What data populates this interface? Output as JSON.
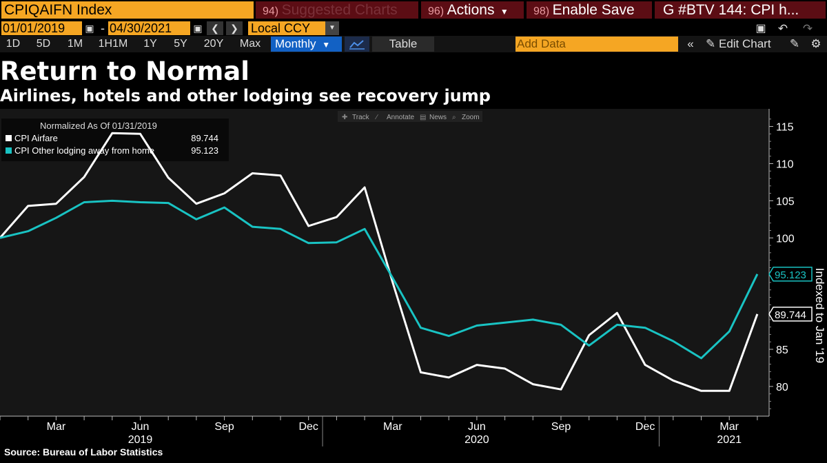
{
  "toolbar": {
    "ticker": "CPIQAIFN Index",
    "suggested": {
      "num": "94)",
      "label": "Suggested Charts"
    },
    "actions": {
      "num": "96)",
      "label": "Actions"
    },
    "enable_save": {
      "num": "98)",
      "label": "Enable Save"
    },
    "chart_name": "G #BTV 144: CPI h...",
    "start_date": "01/01/2019",
    "date_sep": "-",
    "end_date": "04/30/2021",
    "currency": "Local CCY",
    "timeframes": [
      "1D",
      "5D",
      "1M",
      "1H1M",
      "1Y",
      "5Y",
      "20Y",
      "Max"
    ],
    "period": "Monthly",
    "table_label": "Table",
    "add_data_placeholder": "Add Data",
    "edit_chart": "Edit Chart"
  },
  "headline": "Return to Normal",
  "subheadline": "Airlines, hotels and other lodging see recovery jump",
  "source": "Source: Bureau of Labor Statistics",
  "chart_tools": [
    "Track",
    "Annotate",
    "News",
    "Zoom"
  ],
  "legend": {
    "header": "Normalized As Of 01/31/2019",
    "items": [
      {
        "name": "CPI Airfare",
        "value": "89.744"
      },
      {
        "name": "CPI Other lodging away from home",
        "value": "95.123"
      }
    ]
  },
  "colors": {
    "airfare": "#ffffff",
    "lodging": "#19c3c3",
    "orange": "#f5a623",
    "highlight": "#1261c4"
  },
  "chart_data": {
    "type": "line",
    "x": [
      "2019-01",
      "2019-02",
      "2019-03",
      "2019-04",
      "2019-05",
      "2019-06",
      "2019-07",
      "2019-08",
      "2019-09",
      "2019-10",
      "2019-11",
      "2019-12",
      "2020-01",
      "2020-02",
      "2020-03",
      "2020-04",
      "2020-05",
      "2020-06",
      "2020-07",
      "2020-08",
      "2020-09",
      "2020-10",
      "2020-11",
      "2020-12",
      "2021-01",
      "2021-02",
      "2021-03",
      "2021-04"
    ],
    "series": [
      {
        "name": "CPI Airfare",
        "values": [
          100.0,
          104.3,
          104.6,
          108.2,
          114.1,
          114.0,
          108.1,
          104.6,
          106.0,
          108.7,
          108.4,
          101.6,
          102.8,
          106.8,
          94.0,
          81.9,
          81.2,
          82.9,
          82.4,
          80.3,
          79.6,
          86.9,
          89.9,
          82.9,
          80.8,
          79.4,
          79.4,
          89.744
        ]
      },
      {
        "name": "CPI Other lodging away from home",
        "values": [
          100.0,
          100.9,
          102.7,
          104.8,
          105.0,
          104.8,
          104.7,
          102.5,
          104.1,
          101.5,
          101.2,
          99.3,
          99.4,
          101.2,
          94.6,
          87.9,
          86.8,
          88.2,
          88.6,
          89.0,
          88.3,
          85.5,
          88.3,
          87.9,
          86.1,
          83.8,
          87.4,
          95.123
        ]
      }
    ],
    "y_ticks": [
      80,
      85,
      90,
      95,
      100,
      105,
      110,
      115
    ],
    "y_tick_labels": [
      "80",
      "85",
      "",
      "",
      "100",
      "105",
      "110",
      "115"
    ],
    "ylim": [
      76,
      117
    ],
    "ylabel": "Indexed to Jan '19",
    "x_month_labels": [
      {
        "x": "2019-03",
        "label": "Mar"
      },
      {
        "x": "2019-06",
        "label": "Jun"
      },
      {
        "x": "2019-09",
        "label": "Sep"
      },
      {
        "x": "2019-12",
        "label": "Dec"
      },
      {
        "x": "2020-03",
        "label": "Mar"
      },
      {
        "x": "2020-06",
        "label": "Jun"
      },
      {
        "x": "2020-09",
        "label": "Sep"
      },
      {
        "x": "2020-12",
        "label": "Dec"
      },
      {
        "x": "2021-03",
        "label": "Mar"
      }
    ],
    "x_year_labels": [
      {
        "x": "2019-06",
        "label": "2019"
      },
      {
        "x": "2020-06",
        "label": "2020"
      },
      {
        "x": "2021-03",
        "label": "2021"
      }
    ],
    "last_value_labels": [
      "89.744",
      "95.123"
    ],
    "grid": false,
    "legend_position": "top-left"
  }
}
